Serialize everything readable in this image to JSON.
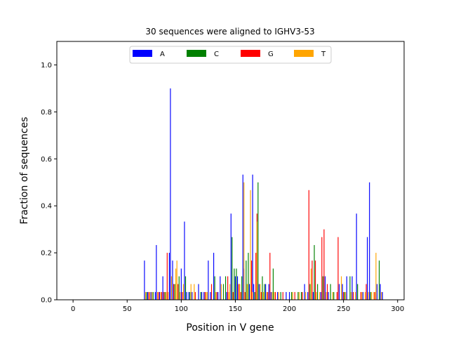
{
  "chart_data": {
    "type": "bar",
    "title": "30 sequences were aligned to IGHV3-53",
    "xlabel": "Position in V gene",
    "ylabel": "Fraction of sequences",
    "xlim": [
      -15,
      306
    ],
    "ylim": [
      0,
      1.1
    ],
    "xticks": [
      0,
      50,
      100,
      150,
      200,
      250,
      300
    ],
    "yticks": [
      0.0,
      0.2,
      0.4,
      0.6,
      0.8,
      1.0
    ],
    "grid": false,
    "legend_position": "top-center",
    "series": [
      {
        "name": "A",
        "color": "#0000ff",
        "points": [
          [
            66,
            0.167
          ],
          [
            69,
            0.033
          ],
          [
            72,
            0.033
          ],
          [
            76,
            0.033
          ],
          [
            77,
            0.233
          ],
          [
            80,
            0.033
          ],
          [
            83,
            0.1
          ],
          [
            89,
            0.2
          ],
          [
            90,
            0.9
          ],
          [
            92,
            0.167
          ],
          [
            100,
            0.133
          ],
          [
            103,
            0.333
          ],
          [
            105,
            0.033
          ],
          [
            107,
            0.033
          ],
          [
            110,
            0.033
          ],
          [
            116,
            0.067
          ],
          [
            119,
            0.033
          ],
          [
            121,
            0.033
          ],
          [
            125,
            0.167
          ],
          [
            127,
            0.033
          ],
          [
            130,
            0.2
          ],
          [
            134,
            0.033
          ],
          [
            136,
            0.1
          ],
          [
            142,
            0.033
          ],
          [
            146,
            0.367
          ],
          [
            150,
            0.1
          ],
          [
            152,
            0.1
          ],
          [
            157,
            0.533
          ],
          [
            158,
            0.133
          ],
          [
            163,
            0.067
          ],
          [
            166,
            0.533
          ],
          [
            167,
            0.067
          ],
          [
            172,
            0.067
          ],
          [
            178,
            0.067
          ],
          [
            181,
            0.067
          ],
          [
            183,
            0.033
          ],
          [
            189,
            0.033
          ],
          [
            197,
            0.033
          ],
          [
            200,
            0.033
          ],
          [
            214,
            0.067
          ],
          [
            217,
            0.033
          ],
          [
            222,
            0.033
          ],
          [
            229,
            0.033
          ],
          [
            233,
            0.1
          ],
          [
            236,
            0.033
          ],
          [
            246,
            0.067
          ],
          [
            249,
            0.067
          ],
          [
            253,
            0.1
          ],
          [
            258,
            0.1
          ],
          [
            262,
            0.367
          ],
          [
            268,
            0.033
          ],
          [
            272,
            0.267
          ],
          [
            274,
            0.5
          ],
          [
            281,
            0.067
          ],
          [
            284,
            0.067
          ],
          [
            286,
            0.033
          ]
        ]
      },
      {
        "name": "C",
        "color": "#008000",
        "points": [
          [
            68,
            0.033
          ],
          [
            74,
            0.033
          ],
          [
            85,
            0.033
          ],
          [
            94,
            0.067
          ],
          [
            98,
            0.1
          ],
          [
            104,
            0.1
          ],
          [
            108,
            0.033
          ],
          [
            118,
            0.033
          ],
          [
            131,
            0.1
          ],
          [
            139,
            0.067
          ],
          [
            141,
            0.1
          ],
          [
            147,
            0.267
          ],
          [
            149,
            0.133
          ],
          [
            151,
            0.133
          ],
          [
            154,
            0.067
          ],
          [
            156,
            0.1
          ],
          [
            160,
            0.167
          ],
          [
            162,
            0.2
          ],
          [
            168,
            0.033
          ],
          [
            171,
            0.5
          ],
          [
            175,
            0.1
          ],
          [
            177,
            0.067
          ],
          [
            185,
            0.133
          ],
          [
            192,
            0.033
          ],
          [
            202,
            0.033
          ],
          [
            208,
            0.033
          ],
          [
            211,
            0.033
          ],
          [
            219,
            0.067
          ],
          [
            223,
            0.233
          ],
          [
            226,
            0.067
          ],
          [
            231,
            0.1
          ],
          [
            238,
            0.067
          ],
          [
            241,
            0.033
          ],
          [
            251,
            0.033
          ],
          [
            256,
            0.1
          ],
          [
            263,
            0.067
          ],
          [
            275,
            0.033
          ],
          [
            283,
            0.167
          ]
        ]
      },
      {
        "name": "G",
        "color": "#ff0000",
        "points": [
          [
            70,
            0.033
          ],
          [
            79,
            0.033
          ],
          [
            82,
            0.033
          ],
          [
            84,
            0.033
          ],
          [
            87,
            0.2
          ],
          [
            93,
            0.067
          ],
          [
            97,
            0.067
          ],
          [
            101,
            0.033
          ],
          [
            113,
            0.033
          ],
          [
            122,
            0.033
          ],
          [
            128,
            0.067
          ],
          [
            133,
            0.033
          ],
          [
            143,
            0.1
          ],
          [
            148,
            0.033
          ],
          [
            153,
            0.067
          ],
          [
            155,
            0.033
          ],
          [
            159,
            0.033
          ],
          [
            165,
            0.167
          ],
          [
            169,
            0.2
          ],
          [
            170,
            0.367
          ],
          [
            174,
            0.033
          ],
          [
            180,
            0.033
          ],
          [
            182,
            0.2
          ],
          [
            187,
            0.033
          ],
          [
            194,
            0.033
          ],
          [
            205,
            0.033
          ],
          [
            212,
            0.033
          ],
          [
            218,
            0.467
          ],
          [
            221,
            0.167
          ],
          [
            224,
            0.167
          ],
          [
            230,
            0.267
          ],
          [
            232,
            0.3
          ],
          [
            235,
            0.067
          ],
          [
            244,
            0.033
          ],
          [
            245,
            0.267
          ],
          [
            250,
            0.033
          ],
          [
            259,
            0.033
          ],
          [
            266,
            0.033
          ],
          [
            271,
            0.067
          ],
          [
            279,
            0.033
          ]
        ]
      },
      {
        "name": "T",
        "color": "#ffa500",
        "points": [
          [
            67,
            0.033
          ],
          [
            71,
            0.033
          ],
          [
            73,
            0.033
          ],
          [
            78,
            0.033
          ],
          [
            81,
            0.033
          ],
          [
            86,
            0.033
          ],
          [
            88,
            0.033
          ],
          [
            91,
            0.1
          ],
          [
            95,
            0.133
          ],
          [
            96,
            0.167
          ],
          [
            99,
            0.033
          ],
          [
            102,
            0.067
          ],
          [
            109,
            0.067
          ],
          [
            112,
            0.067
          ],
          [
            123,
            0.033
          ],
          [
            124,
            0.033
          ],
          [
            132,
            0.033
          ],
          [
            137,
            0.067
          ],
          [
            144,
            0.033
          ],
          [
            145,
            0.067
          ],
          [
            154,
            0.067
          ],
          [
            158,
            0.5
          ],
          [
            161,
            0.067
          ],
          [
            164,
            0.467
          ],
          [
            166,
            0.033
          ],
          [
            170,
            0.333
          ],
          [
            173,
            0.067
          ],
          [
            176,
            0.033
          ],
          [
            179,
            0.033
          ],
          [
            184,
            0.033
          ],
          [
            186,
            0.033
          ],
          [
            190,
            0.033
          ],
          [
            203,
            0.033
          ],
          [
            209,
            0.033
          ],
          [
            215,
            0.033
          ],
          [
            220,
            0.133
          ],
          [
            225,
            0.033
          ],
          [
            228,
            0.033
          ],
          [
            234,
            0.033
          ],
          [
            240,
            0.033
          ],
          [
            248,
            0.1
          ],
          [
            252,
            0.033
          ],
          [
            257,
            0.033
          ],
          [
            261,
            0.033
          ],
          [
            267,
            0.033
          ],
          [
            270,
            0.033
          ],
          [
            273,
            0.033
          ],
          [
            276,
            0.033
          ],
          [
            278,
            0.033
          ],
          [
            280,
            0.2
          ],
          [
            285,
            0.033
          ]
        ]
      }
    ]
  }
}
